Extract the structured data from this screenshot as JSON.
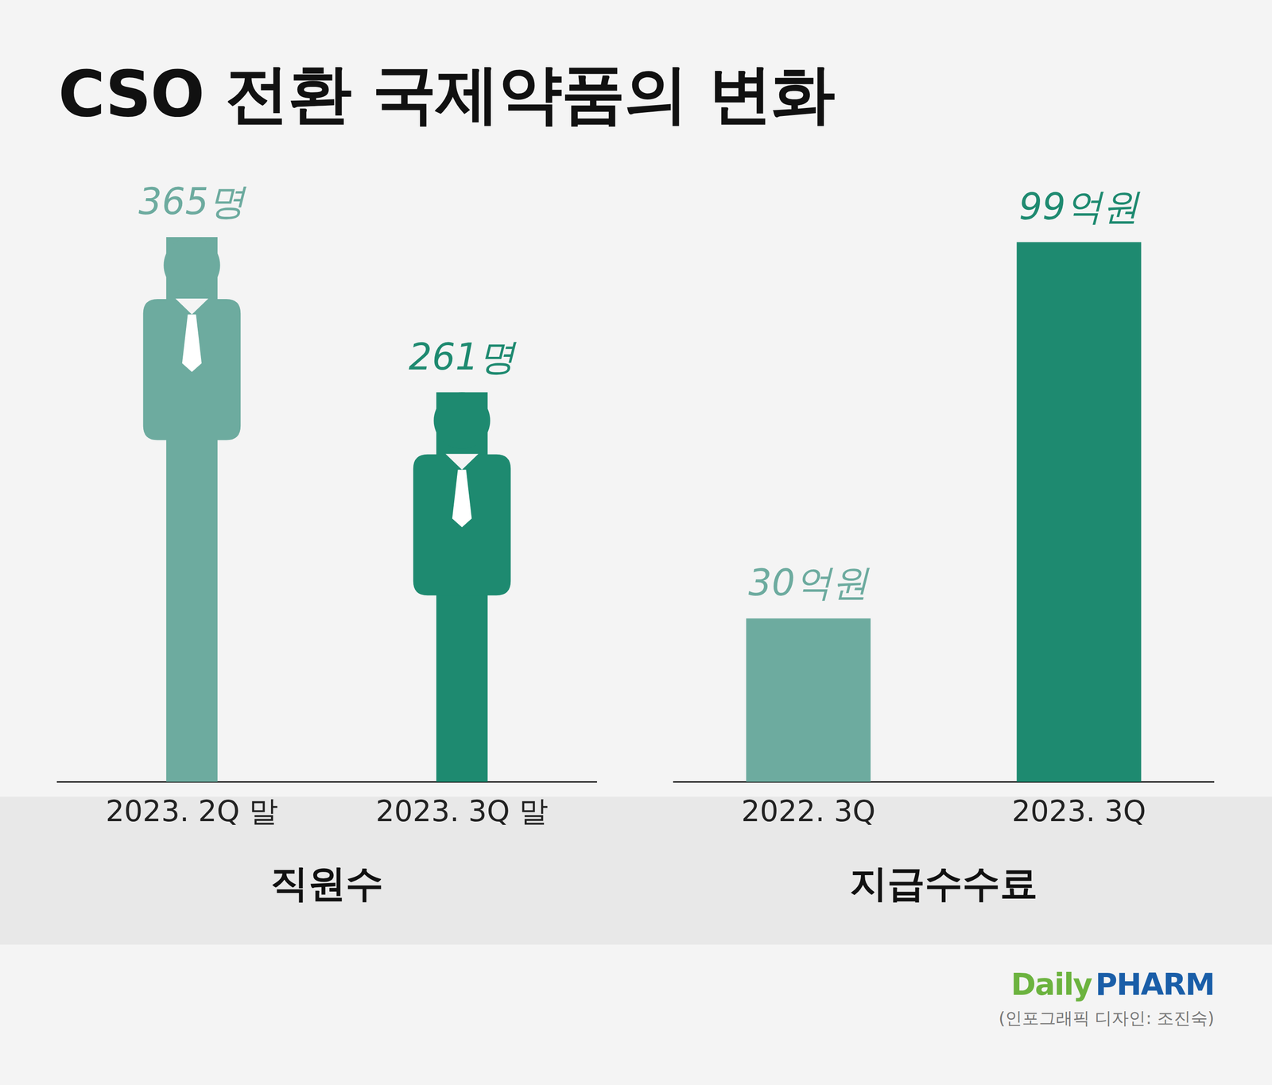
{
  "title": "CSO 전환 국제약품의 변화",
  "footer": {
    "logo": "Daily PHARM",
    "credit": "(인포그래픽 디자인: 조진숙)"
  },
  "chart_data": [
    {
      "type": "bar",
      "x_label": "직원수",
      "categories": [
        "2023. 2Q 말",
        "2023. 3Q 말"
      ],
      "values": [
        365,
        261
      ],
      "value_labels": [
        "365명",
        "261명"
      ],
      "colors": [
        "#6dab9f",
        "#1e8a70"
      ],
      "ylim": [
        0,
        420
      ],
      "data_labels": true,
      "tick_labels": "x",
      "grid": false,
      "marker": "person"
    },
    {
      "type": "bar",
      "x_label": "지급수수료",
      "categories": [
        "2022. 3Q",
        "2023. 3Q"
      ],
      "values": [
        30,
        99
      ],
      "value_labels": [
        "30억원",
        "99억원"
      ],
      "colors": [
        "#6dab9f",
        "#1e8a70"
      ],
      "ylim": [
        0,
        115
      ],
      "data_labels": true,
      "tick_labels": "x",
      "grid": false
    }
  ]
}
